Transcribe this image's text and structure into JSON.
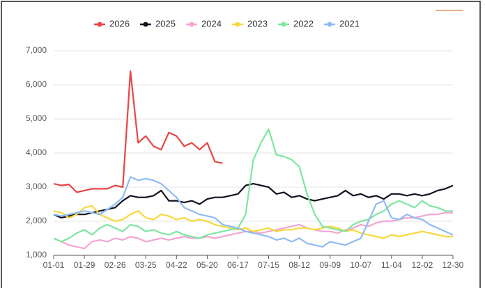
{
  "chart_data": {
    "type": "line",
    "categories": [
      "01-01",
      null,
      null,
      null,
      "01-29",
      null,
      null,
      null,
      "02-26",
      null,
      null,
      null,
      "03-25",
      null,
      null,
      null,
      "04-22",
      null,
      null,
      null,
      "05-20",
      null,
      null,
      null,
      "06-17",
      null,
      null,
      null,
      "07-15",
      null,
      null,
      null,
      "08-12",
      null,
      null,
      null,
      "09-09",
      null,
      null,
      null,
      "10-07",
      null,
      null,
      null,
      "11-04",
      null,
      null,
      null,
      "12-02",
      null,
      null,
      null,
      "12-30"
    ],
    "ylim": [
      1000,
      7000
    ],
    "yticks": [
      {
        "value": 1000,
        "label": "1,000"
      },
      {
        "value": 2000,
        "label": "2,000"
      },
      {
        "value": 3000,
        "label": "3,000"
      },
      {
        "value": 4000,
        "label": "4,000"
      },
      {
        "value": 5000,
        "label": "5,000"
      },
      {
        "value": 6000,
        "label": "6,000"
      },
      {
        "value": 7000,
        "label": "7,000"
      }
    ],
    "grid": true,
    "series": [
      {
        "name": "2026",
        "color": "#e84545",
        "values": [
          3100,
          3050,
          3080,
          2850,
          2900,
          2950,
          2950,
          2950,
          3050,
          3000,
          6400,
          4300,
          4500,
          4200,
          4100,
          4600,
          4500,
          4200,
          4300,
          4100,
          4300,
          3750,
          3700,
          null,
          null,
          null,
          null,
          null,
          null,
          null,
          null,
          null,
          null,
          null,
          null,
          null,
          null,
          null,
          null,
          null,
          null,
          null,
          null,
          null,
          null,
          null,
          null,
          null,
          null,
          null,
          null,
          null,
          null
        ]
      },
      {
        "name": "2025",
        "color": "#111122",
        "values": [
          2200,
          2100,
          2150,
          2200,
          2200,
          2250,
          2300,
          2350,
          2400,
          2600,
          2750,
          2700,
          2700,
          2750,
          2900,
          2600,
          2600,
          2550,
          2600,
          2500,
          2650,
          2700,
          2700,
          2750,
          2800,
          3050,
          3100,
          3050,
          3000,
          2800,
          2850,
          2700,
          2750,
          2650,
          2600,
          2650,
          2700,
          2750,
          2900,
          2750,
          2800,
          2700,
          2750,
          2650,
          2800,
          2800,
          2750,
          2800,
          2750,
          2800,
          2900,
          2950,
          3050
        ]
      },
      {
        "name": "2024",
        "color": "#f2a5d2",
        "values": [
          1500,
          1400,
          1300,
          1250,
          1200,
          1400,
          1450,
          1400,
          1500,
          1450,
          1550,
          1500,
          1400,
          1450,
          1500,
          1450,
          1500,
          1550,
          1500,
          1500,
          1550,
          1500,
          1550,
          1600,
          1650,
          1700,
          1700,
          1650,
          1700,
          1750,
          1800,
          1850,
          1900,
          1800,
          1750,
          1700,
          1700,
          1650,
          1750,
          1800,
          1900,
          1850,
          1950,
          2000,
          2000,
          2050,
          2100,
          2100,
          2150,
          2200,
          2200,
          2250,
          2250
        ]
      },
      {
        "name": "2023",
        "color": "#f6d83c",
        "values": [
          2300,
          2250,
          2100,
          2200,
          2400,
          2450,
          2200,
          2100,
          2000,
          2050,
          2200,
          2300,
          2100,
          2050,
          2200,
          2150,
          2050,
          2100,
          2000,
          2050,
          2000,
          1900,
          1850,
          1800,
          1750,
          1800,
          1700,
          1750,
          1800,
          1700,
          1750,
          1750,
          1800,
          1800,
          1750,
          1800,
          1850,
          1800,
          1700,
          1750,
          1650,
          1600,
          1550,
          1500,
          1600,
          1550,
          1600,
          1650,
          1700,
          1650,
          1600,
          1550,
          1550
        ]
      },
      {
        "name": "2022",
        "color": "#7ee6a0",
        "values": [
          1500,
          1400,
          1500,
          1650,
          1750,
          1600,
          1800,
          1900,
          1800,
          1700,
          1900,
          1850,
          1700,
          1750,
          1650,
          1600,
          1700,
          1600,
          1550,
          1500,
          1600,
          1650,
          1700,
          1750,
          1800,
          2200,
          3800,
          4300,
          4700,
          3950,
          3900,
          3800,
          3600,
          2800,
          2200,
          1850,
          1800,
          1750,
          1700,
          1900,
          2000,
          2050,
          2200,
          2300,
          2500,
          2600,
          2500,
          2400,
          2600,
          2450,
          2400,
          2300,
          2300
        ]
      },
      {
        "name": "2021",
        "color": "#8ebcf2",
        "values": [
          2200,
          2150,
          2200,
          2250,
          2300,
          2250,
          2200,
          2350,
          2500,
          2700,
          3300,
          3200,
          3250,
          3200,
          3100,
          2900,
          2700,
          2400,
          2300,
          2200,
          2150,
          2100,
          1900,
          1850,
          1800,
          1700,
          1650,
          1600,
          1550,
          1450,
          1500,
          1400,
          1500,
          1350,
          1300,
          1250,
          1400,
          1350,
          1300,
          1400,
          1500,
          2000,
          2500,
          2600,
          2100,
          2050,
          2200,
          2100,
          2050,
          1900,
          1800,
          1700,
          1600
        ]
      }
    ]
  }
}
